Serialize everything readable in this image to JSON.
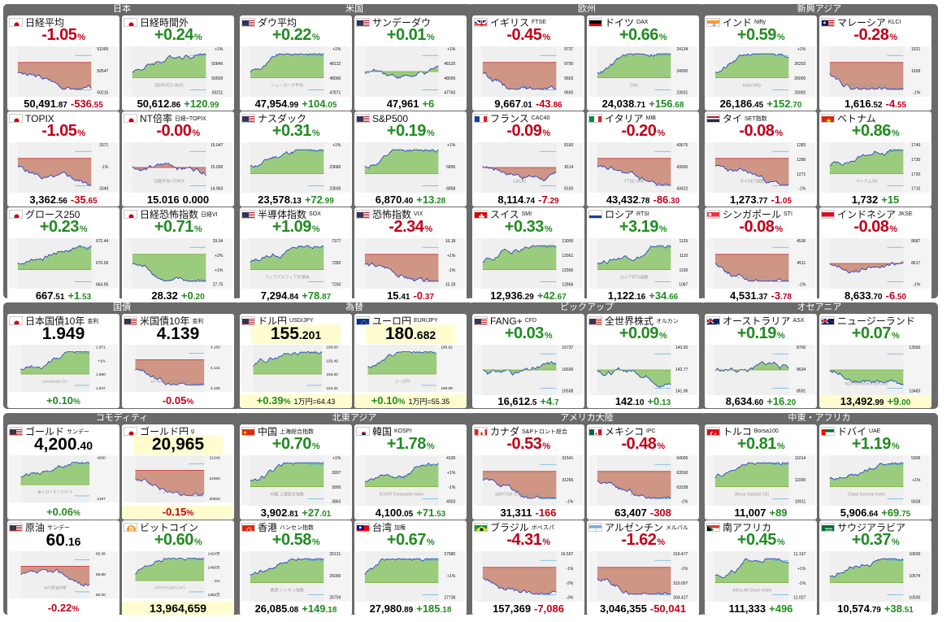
{
  "groups": [
    {
      "title": "日本",
      "cards": [
        {
          "name": "日経平均",
          "sub": "",
          "flag": "jp",
          "pct": "-1.05",
          "dir": "dn",
          "value": "50,491",
          "dec": ".87",
          "change": "-536",
          "cdec": ".55",
          "trend": "down",
          "labels": [
            "51000",
            "50547",
            "50215"
          ]
        },
        {
          "name": "日経時間外",
          "sub": "",
          "flag": "jp",
          "pct": "+0.24",
          "dir": "up",
          "value": "50,612",
          "dec": ".86",
          "change": "+120",
          "cdec": ".99",
          "trend": "up",
          "labels": [
            "+1%",
            "50840",
            "50500",
            "50211"
          ],
          "wm": "DERIVED 4615"
        },
        {
          "name": "TOPIX",
          "sub": "",
          "flag": "jp",
          "pct": "-1.05",
          "dir": "dn",
          "value": "3,362",
          "dec": ".56",
          "change": "-35",
          "cdec": ".65",
          "trend": "down",
          "labels": [
            "3371",
            "-1%",
            "3349"
          ]
        },
        {
          "name": "NT倍率",
          "sub": "日経÷TOPIX",
          "flag": "jp",
          "pct": "-0.00",
          "dir": "dn",
          "value": "15.016",
          "dec": "",
          "change": "0.000",
          "cdec": "",
          "cdir": "nz",
          "trend": "flat",
          "labels": [
            "15.047",
            "15.000",
            "14.963"
          ],
          "wm": "日経平均÷TOPIX"
        },
        {
          "name": "グロース250",
          "sub": "",
          "flag": "jp",
          "pct": "+0.23",
          "dir": "up",
          "value": "667",
          "dec": ".51",
          "change": "+1",
          "cdec": ".53",
          "trend": "up",
          "labels": [
            "672.44",
            "670.00",
            "664.95"
          ]
        },
        {
          "name": "日経恐怖指数",
          "sub": "日経VI",
          "flag": "jp",
          "pct": "+0.71",
          "dir": "up",
          "value": "28.32",
          "dec": "",
          "change": "+0",
          "cdec": ".20",
          "trend": "down",
          "labels": [
            "29.04",
            "+2%",
            "+1%",
            "27.75"
          ]
        }
      ]
    },
    {
      "title": "米国",
      "cards": [
        {
          "name": "ダウ平均",
          "sub": "",
          "flag": "us",
          "pct": "+0.22",
          "dir": "up",
          "value": "47,954",
          "dec": ".99",
          "change": "+104",
          "cdec": ".05",
          "trend": "up",
          "labels": [
            "+1%",
            "48132",
            "48000",
            "47871"
          ],
          "wm": "ニューヨーク平均"
        },
        {
          "name": "サンデーダウ",
          "sub": "",
          "flag": "us",
          "pct": "+0.01",
          "dir": "up",
          "value": "47,961",
          "dec": "",
          "change": "+6",
          "cdec": "",
          "trend": "flat",
          "labels": [
            "+1%",
            "48125",
            "48000",
            "47760"
          ]
        },
        {
          "name": "ナスダック",
          "sub": "",
          "flag": "us",
          "pct": "+0.31",
          "dir": "up",
          "value": "23,578",
          "dec": ".13",
          "change": "+72",
          "cdec": ".99",
          "trend": "up",
          "labels": [
            "+1%",
            "23680",
            "23506"
          ]
        },
        {
          "name": "S&P500",
          "sub": "",
          "flag": "us",
          "pct": "+0.19",
          "dir": "up",
          "value": "6,870",
          "dec": ".40",
          "change": "+13",
          "cdec": ".28",
          "trend": "up",
          "labels": [
            "+1%",
            "6895",
            "6858"
          ]
        },
        {
          "name": "半導体指数",
          "sub": "SOX",
          "flag": "us",
          "pct": "+1.09",
          "dir": "up",
          "value": "7,294",
          "dec": ".84",
          "change": "+78",
          "cdec": ".87",
          "trend": "up",
          "labels": [
            "7377",
            "7282",
            "7250"
          ],
          "wm": "フィラデルフィア半導体"
        },
        {
          "name": "恐怖指数",
          "sub": "VIX",
          "flag": "us",
          "pct": "-2.34",
          "dir": "dn",
          "value": "15",
          "dec": ".41",
          "change": "-0",
          "cdec": ".37",
          "trend": "down",
          "labels": [
            "16.18",
            "+1%",
            "-1%",
            "15.28"
          ]
        }
      ]
    },
    {
      "title": "欧州",
      "cards": [
        {
          "name": "イギリス",
          "sub": "FTSE",
          "flag": "uk",
          "pct": "-0.45",
          "dir": "dn",
          "value": "9,667",
          "dec": ".01",
          "change": "-43",
          "cdec": ".86",
          "trend": "down",
          "labels": [
            "9737",
            "9700",
            "9663",
            "9600"
          ],
          "wm": "FTSE100"
        },
        {
          "name": "ドイツ",
          "sub": "DAX",
          "flag": "de",
          "pct": "+0.66",
          "dir": "up",
          "value": "24,038",
          "dec": ".71",
          "change": "+156",
          "cdec": ".68",
          "trend": "up",
          "labels": [
            "24134",
            "24000",
            "23931"
          ],
          "wm": "DAX"
        },
        {
          "name": "フランス",
          "sub": "CAC40",
          "flag": "fr",
          "pct": "-0.09",
          "dir": "dn",
          "value": "8,114",
          "dec": ".74",
          "change": "-7",
          "cdec": ".29",
          "trend": "flat",
          "labels": [
            "8160",
            "8114",
            "8100"
          ],
          "wm": "CAC40"
        },
        {
          "name": "イタリア",
          "sub": "MIB",
          "flag": "it",
          "pct": "-0.20",
          "dir": "dn",
          "value": "43,432",
          "dec": ".78",
          "change": "-86",
          "cdec": ".30",
          "trend": "down",
          "labels": [
            "43675",
            "43500",
            "43422"
          ],
          "wm": "FTSE MIB"
        },
        {
          "name": "スイス",
          "sub": "SMI",
          "flag": "ch",
          "pct": "+0.33",
          "dir": "up",
          "value": "12,936",
          "dec": ".29",
          "change": "+42",
          "cdec": ".67",
          "trend": "up",
          "labels": [
            "13000",
            "12961",
            "12900",
            "12866"
          ]
        },
        {
          "name": "ロシア",
          "sub": "RTSI",
          "flag": "ru",
          "pct": "+3.19",
          "dir": "up",
          "value": "1,122",
          "dec": ".16",
          "change": "+34",
          "cdec": ".66",
          "trend": "up",
          "labels": [
            "1125",
            "1110",
            "1100",
            "1087"
          ],
          "wm": "ロシアRTS指数"
        }
      ]
    },
    {
      "title": "新興アジア",
      "cards": [
        {
          "name": "インド",
          "sub": "Nifty",
          "flag": "in",
          "pct": "+0.59",
          "dir": "up",
          "value": "26,186",
          "dec": ".45",
          "change": "+152",
          "cdec": ".70",
          "trend": "up",
          "labels": [
            "+1%",
            "26202",
            "26000",
            "25992"
          ],
          "wm": "India Nifty"
        },
        {
          "name": "マレーシア",
          "sub": "KLCI",
          "flag": "my",
          "pct": "-0.28",
          "dir": "dn",
          "value": "1,616",
          "dec": ".52",
          "change": "-4",
          "cdec": ".55",
          "trend": "down",
          "labels": [
            "1621",
            "1609",
            "-1%"
          ],
          "wm": "FTSE Bursa Malaysia"
        },
        {
          "name": "タイ",
          "sub": "SET指数",
          "flag": "th",
          "pct": "-0.08",
          "dir": "dn",
          "value": "1,273",
          "dec": ".77",
          "change": "-1",
          "cdec": ".05",
          "trend": "down",
          "labels": [
            "1283",
            "1280",
            "1271",
            "-1%"
          ],
          "wm": "タイSET指数"
        },
        {
          "name": "ベトナム",
          "sub": "",
          "flag": "vn",
          "pct": "+0.86",
          "dir": "up",
          "value": "1,732",
          "dec": "",
          "change": "+15",
          "cdec": "",
          "trend": "up",
          "labels": [
            "1740",
            "1730",
            "1720",
            "1715"
          ],
          "wm": "ベトナムVN"
        },
        {
          "name": "シンガポール",
          "sub": "STI",
          "flag": "sg",
          "pct": "-0.08",
          "dir": "dn",
          "value": "4,531",
          "dec": ".37",
          "change": "-3",
          "cdec": ".78",
          "trend": "down",
          "labels": [
            "4536",
            "4511",
            "-1%"
          ],
          "wm": "シンガポールSTI"
        },
        {
          "name": "インドネシア",
          "sub": "JKSE",
          "flag": "id",
          "pct": "-0.08",
          "dir": "dn",
          "value": "8,633",
          "dec": ".70",
          "change": "-6",
          "cdec": ".50",
          "trend": "flat",
          "labels": [
            "8687",
            "8617",
            "-1%"
          ]
        }
      ]
    },
    {
      "title": "国債",
      "cards": [
        {
          "kind": "bond",
          "name": "日本国債10年",
          "sub": "金利",
          "flag": "jp",
          "big": "1.949",
          "pct": "+0.10",
          "dir": "up",
          "labels": [
            "1.971",
            "+1%",
            "1.960",
            "1.947"
          ],
          "wm": "GovBonds 10Y"
        },
        {
          "kind": "bond",
          "name": "米国債10年",
          "sub": "金利",
          "flag": "us",
          "big": "4.139",
          "pct": "-0.05",
          "dir": "dn",
          "labels": [
            "4.150",
            "4.141",
            "4.135"
          ],
          "wm": "10-Year Treasury Yield"
        }
      ]
    },
    {
      "title": "為替",
      "cards": [
        {
          "kind": "fx",
          "name": "ドル円",
          "sub": "USD/JPY",
          "flag": "us",
          "big": "155",
          "bigdec": ".201",
          "pct": "+0.39",
          "dir": "up",
          "extra": "1万円=64.43",
          "labels": [
            "156.00",
            "155.49",
            "155.00",
            "154.34"
          ]
        },
        {
          "kind": "fx",
          "name": "ユーロ円",
          "sub": "EUR/JPY",
          "flag": "eu",
          "big": "180",
          "bigdec": ".682",
          "pct": "+0.10",
          "dir": "up",
          "extra": "1万円=55.35",
          "labels": [
            "180.92",
            "180.09"
          ],
          "wm": "ユーロ円"
        }
      ]
    },
    {
      "title": "ピックアップ",
      "cards": [
        {
          "name": "FANG+",
          "sub": "CFD",
          "flag": "us",
          "pct": "+0.03",
          "dir": "up",
          "value": "16,612",
          "dec": ".5",
          "change": "+4",
          "cdec": ".7",
          "trend": "flat",
          "labels": [
            "16737",
            "16600",
            "16508"
          ]
        },
        {
          "name": "全世界株式",
          "sub": "オルカン",
          "flag": "us",
          "pct": "+0.09",
          "dir": "up",
          "value": "142",
          "dec": ".10",
          "change": "+0",
          "cdec": ".13",
          "trend": "flat",
          "labels": [
            "143.00",
            "142.77",
            "141.96"
          ]
        }
      ]
    },
    {
      "title": "オセアニア",
      "cards": [
        {
          "name": "オーストラリア",
          "sub": "ASX",
          "flag": "au",
          "pct": "+0.19",
          "dir": "up",
          "value": "8,634",
          "dec": ".60",
          "change": "+16",
          "cdec": ".20",
          "trend": "flat",
          "labels": [
            "8700",
            "8634",
            "8591"
          ]
        },
        {
          "name": "ニュージーランド",
          "sub": "",
          "flag": "nz",
          "pct": "+0.07",
          "dir": "up",
          "value": "13,492",
          "dec": ".99",
          "change": "+9",
          "cdec": ".00",
          "hl": true,
          "trend": "flat",
          "labels": [
            "13500",
            "13483"
          ],
          "wm": "NZX 50 INDEX GROSS"
        }
      ]
    },
    {
      "title": "コモディティ",
      "cards": [
        {
          "kind": "cmd",
          "name": "ゴールド",
          "sub": "サンデー",
          "flag": "us",
          "big": "4,200",
          "bigdec": ".40",
          "pct": "+0.06",
          "dir": "up",
          "labels": [
            "4200",
            "4197"
          ],
          "wm": "金トロイオンス/ドル"
        },
        {
          "kind": "cmd",
          "name": "ゴールド円",
          "sub": "g",
          "flag": "jp",
          "big": "20,965",
          "bigdec": "",
          "pct": "-0.15",
          "dir": "dn",
          "hl": true,
          "labels": [
            "21242",
            "21000",
            "20933"
          ],
          "wm": "ニューヨーク"
        },
        {
          "kind": "cmd",
          "name": "原油",
          "sub": "サンデー",
          "flag": "us",
          "big": "60",
          "bigdec": ".16",
          "pct": "-0.22",
          "dir": "dn",
          "labels": [
            "60.36",
            "59.88",
            "60.00"
          ],
          "wm": "WTI原油先物"
        },
        {
          "kind": "btc",
          "name": "ビットコイン",
          "sub": "",
          "flag": "btc",
          "pct": "+0.60",
          "dir": "up",
          "big": "13,964,659",
          "labels": [
            "1424万",
            "1400万",
            "-1%",
            "1363万"
          ],
          "wm": "CRYPTO:BTCJPY"
        }
      ]
    },
    {
      "title": "北東アジア",
      "cards": [
        {
          "name": "中国",
          "sub": "上海総合指数",
          "flag": "cn",
          "pct": "+0.70",
          "dir": "up",
          "value": "3,902",
          "dec": ".81",
          "change": "+27",
          "cdec": ".01",
          "trend": "up",
          "labels": [
            "+1%",
            "3907",
            "3900",
            "3863"
          ],
          "wm": "中国 上海総合指数"
        },
        {
          "name": "韓国",
          "sub": "KOSPI",
          "flag": "kr",
          "pct": "+1.78",
          "dir": "up",
          "value": "4,100",
          "dec": ".05",
          "change": "+71",
          "cdec": ".53",
          "trend": "up",
          "labels": [
            "4100",
            "+1%",
            "-1%",
            "4003"
          ],
          "wm": "KOSPI Composite Index"
        },
        {
          "name": "香港",
          "sub": "ハンセン指数",
          "flag": "hk",
          "pct": "+0.58",
          "dir": "up",
          "value": "26,085",
          "dec": ".08",
          "change": "+149",
          "cdec": ".18",
          "trend": "up",
          "labels": [
            "26131",
            "26000",
            "25759"
          ],
          "wm": "香港 ハンセン指数"
        },
        {
          "name": "台湾",
          "sub": "加権",
          "flag": "tw",
          "pct": "+0.67",
          "dir": "up",
          "value": "27,980",
          "dec": ".89",
          "change": "+185",
          "cdec": ".18",
          "trend": "up",
          "labels": [
            "27980",
            "+1%",
            "27738"
          ]
        }
      ]
    },
    {
      "title": "アメリカ大陸",
      "cards": [
        {
          "name": "カナダ",
          "sub": "S&Pトロント総合",
          "flag": "ca",
          "pct": "-0.53",
          "dir": "dn",
          "value": "31,311",
          "dec": "",
          "change": "-166",
          "cdec": "",
          "trend": "down",
          "labels": [
            "31541",
            "31265",
            "-1%"
          ],
          "wm": "S&P/TSX Composite Index"
        },
        {
          "name": "メキシコ",
          "sub": "IPC",
          "flag": "mx",
          "pct": "-0.48",
          "dir": "dn",
          "value": "63,407",
          "dec": "",
          "change": "-308",
          "cdec": "",
          "trend": "down",
          "labels": [
            "64005",
            "63500",
            "63338",
            "-1%"
          ],
          "wm": "IPC"
        },
        {
          "name": "ブラジル",
          "sub": "ボベスパ",
          "flag": "br",
          "pct": "-4.31",
          "dir": "dn",
          "value": "157,369",
          "dec": "",
          "change": "-7,086",
          "cdec": "",
          "trend": "down",
          "labels": [
            "16.507",
            "-1%",
            "-2%",
            "-3%"
          ]
        },
        {
          "name": "アルゼンチン",
          "sub": "メルバル",
          "flag": "ar",
          "pct": "-1.62",
          "dir": "dn",
          "value": "3,046,355",
          "dec": "",
          "change": "-50,041",
          "cdec": "",
          "trend": "down",
          "labels": [
            "316.477",
            "-1%",
            "310.007",
            "304.427"
          ]
        }
      ]
    },
    {
      "title": "中東・アフリカ",
      "cards": [
        {
          "name": "トルコ",
          "sub": "Borsa100",
          "flag": "tr",
          "pct": "+0.81",
          "dir": "up",
          "value": "11,007",
          "dec": "",
          "change": "+89",
          "cdec": "",
          "trend": "up",
          "labels": [
            "11014",
            "11000",
            "10911"
          ],
          "wm": "Borsa Istanbul 100"
        },
        {
          "name": "ドバイ",
          "sub": "UAE",
          "flag": "ae",
          "pct": "+1.19",
          "dir": "up",
          "value": "5,906",
          "dec": ".64",
          "change": "+69",
          "cdec": ".75",
          "trend": "up",
          "labels": [
            "5906",
            "+1%",
            "5838"
          ],
          "wm": "Dubai General Index"
        },
        {
          "name": "南アフリカ",
          "sub": "",
          "flag": "za",
          "pct": "+0.45",
          "dir": "up",
          "value": "111,333",
          "dec": "",
          "change": "+496",
          "cdec": "",
          "trend": "up",
          "labels": [
            "11.167",
            "+1%",
            "-1%",
            "11.027"
          ],
          "wm": "Africa All Share Index"
        },
        {
          "name": "サウジアラビア",
          "sub": "",
          "flag": "sa",
          "pct": "+0.37",
          "dir": "up",
          "value": "10,574",
          "dec": ".79",
          "change": "+38",
          "cdec": ".51",
          "trend": "up",
          "labels": [
            "10600",
            "10574",
            "10500"
          ]
        }
      ]
    }
  ],
  "colors": {
    "up": "#228b22",
    "down": "#c0001a",
    "upFill": "#8cc66a",
    "downFill": "#c98572",
    "panel": "#6a6a6a",
    "line": "#1f3fbf"
  }
}
